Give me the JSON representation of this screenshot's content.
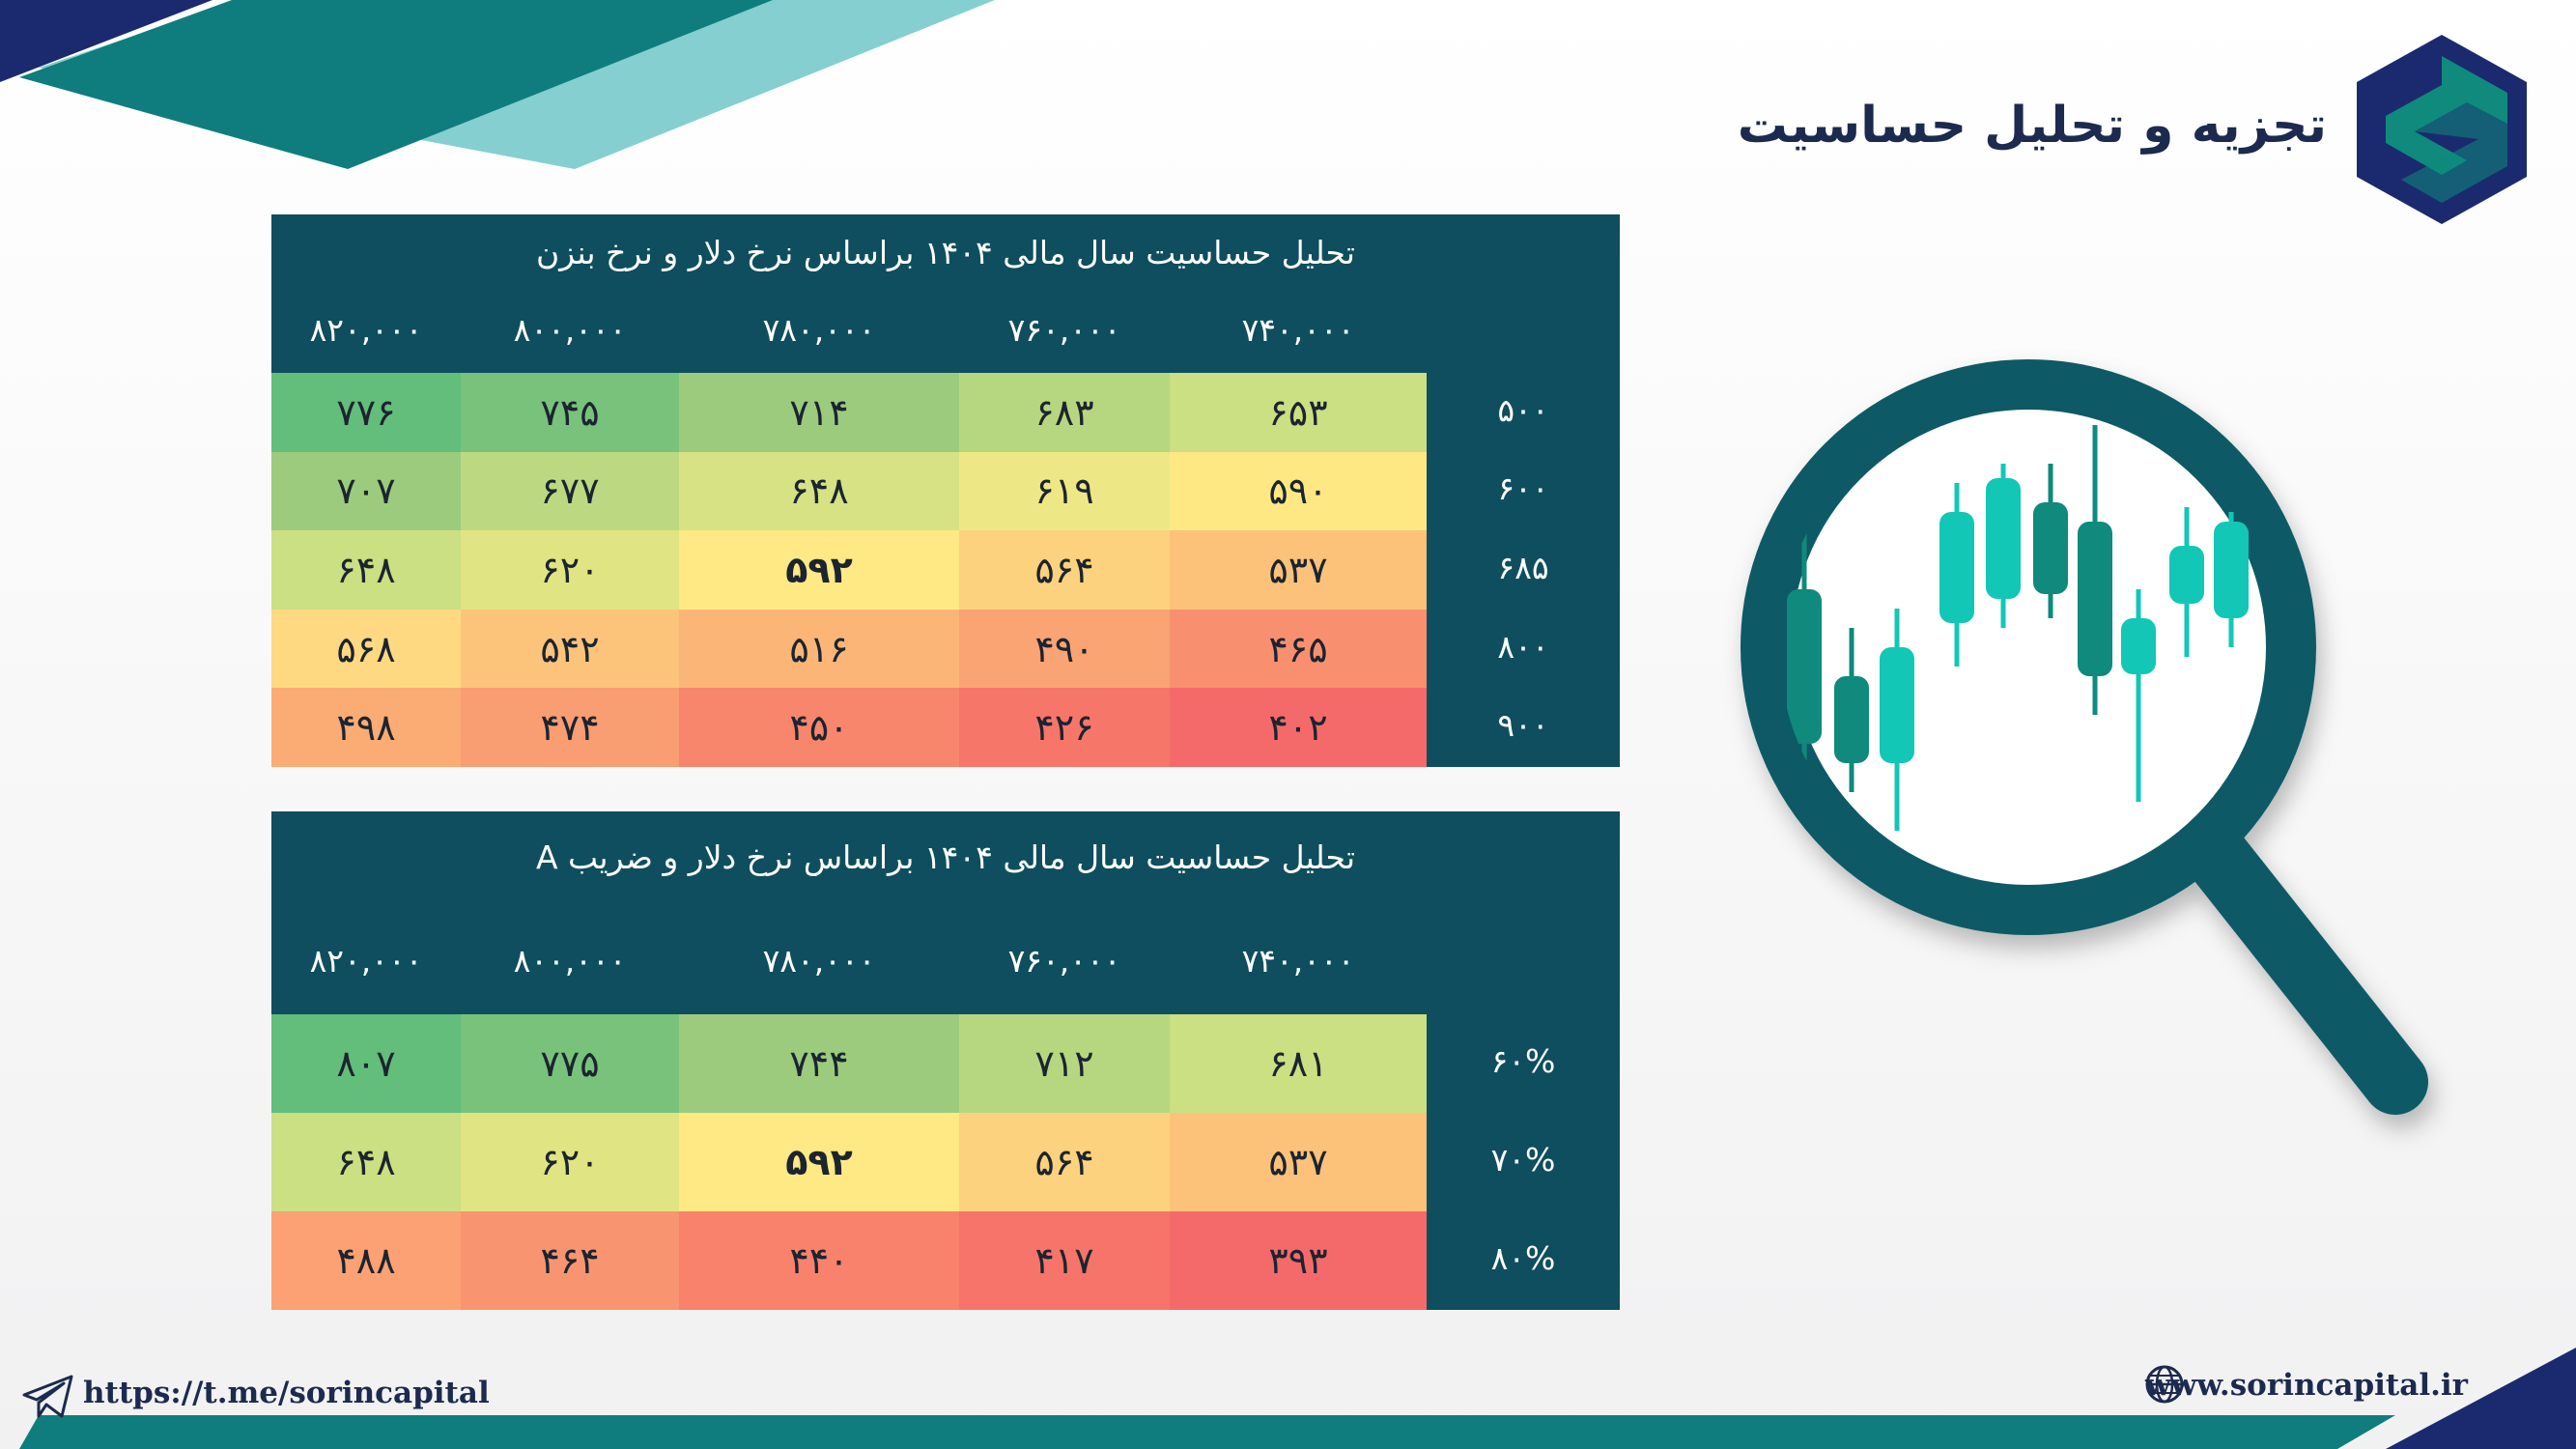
{
  "header": {
    "title": "تجزیه و تحلیل حساسیت"
  },
  "brand": {
    "primary": "#1b2a6e",
    "accent": "#0f8a7c",
    "panel": "#0f4e5e"
  },
  "table1": {
    "title": "تحلیل حساسیت سال مالی ۱۴۰۴ براساس نرخ دلار و نرخ بنزن",
    "columns": [
      "۸۲۰,۰۰۰",
      "۸۰۰,۰۰۰",
      "۷۸۰,۰۰۰",
      "۷۶۰,۰۰۰",
      "۷۴۰,۰۰۰"
    ],
    "rows": [
      {
        "label": "۵۰۰",
        "values": [
          "۷۷۶",
          "۷۴۵",
          "۷۱۴",
          "۶۸۳",
          "۶۵۳"
        ]
      },
      {
        "label": "۶۰۰",
        "values": [
          "۷۰۷",
          "۶۷۷",
          "۶۴۸",
          "۶۱۹",
          "۵۹۰"
        ]
      },
      {
        "label": "۶۸۵",
        "values": [
          "۶۴۸",
          "۶۲۰",
          "۵۹۲",
          "۵۶۴",
          "۵۳۷"
        ]
      },
      {
        "label": "۸۰۰",
        "values": [
          "۵۶۸",
          "۵۴۲",
          "۵۱۶",
          "۴۹۰",
          "۴۶۵"
        ]
      },
      {
        "label": "۹۰۰",
        "values": [
          "۴۹۸",
          "۴۷۴",
          "۴۵۰",
          "۴۲۶",
          "۴۰۲"
        ]
      }
    ],
    "highlight": {
      "row": 2,
      "col": 2
    },
    "colors": [
      [
        "#63bd7b",
        "#79c27c",
        "#9ccb7e",
        "#b7d680",
        "#cbdf83"
      ],
      [
        "#9ccb7e",
        "#bcd982",
        "#d6e283",
        "#ede885",
        "#fde884"
      ],
      [
        "#cbdf83",
        "#e1e483",
        "#fee985",
        "#fdd27e",
        "#fcc27a"
      ],
      [
        "#fed982",
        "#fcc47a",
        "#fbb677",
        "#faa373",
        "#f8906f"
      ],
      [
        "#fbab74",
        "#f99d72",
        "#f8866d",
        "#f7766a",
        "#f46a6b"
      ]
    ]
  },
  "table2": {
    "title": "تحلیل حساسیت سال مالی ۱۴۰۴ براساس نرخ دلار و ضریب A",
    "columns": [
      "۸۲۰,۰۰۰",
      "۸۰۰,۰۰۰",
      "۷۸۰,۰۰۰",
      "۷۶۰,۰۰۰",
      "۷۴۰,۰۰۰"
    ],
    "rows": [
      {
        "label": "۶۰%",
        "values": [
          "۸۰۷",
          "۷۷۵",
          "۷۴۴",
          "۷۱۲",
          "۶۸۱"
        ]
      },
      {
        "label": "۷۰%",
        "values": [
          "۶۴۸",
          "۶۲۰",
          "۵۹۲",
          "۵۶۴",
          "۵۳۷"
        ]
      },
      {
        "label": "۸۰%",
        "values": [
          "۴۸۸",
          "۴۶۴",
          "۴۴۰",
          "۴۱۷",
          "۳۹۳"
        ]
      }
    ],
    "highlight": {
      "row": 1,
      "col": 2
    },
    "colors": [
      [
        "#63bd7b",
        "#79c27c",
        "#9ccb7e",
        "#b7d680",
        "#cbdf83"
      ],
      [
        "#cbdf83",
        "#e1e483",
        "#fee985",
        "#fdd27e",
        "#fcc27a"
      ],
      [
        "#fba173",
        "#f99470",
        "#f8826c",
        "#f6746a",
        "#f46a6b"
      ]
    ]
  },
  "footer": {
    "telegram": "https://t.me/sorincapital",
    "website": "www.sorincapital.ir",
    "telegram_icon": "telegram-icon",
    "globe_icon": "globe-icon"
  }
}
